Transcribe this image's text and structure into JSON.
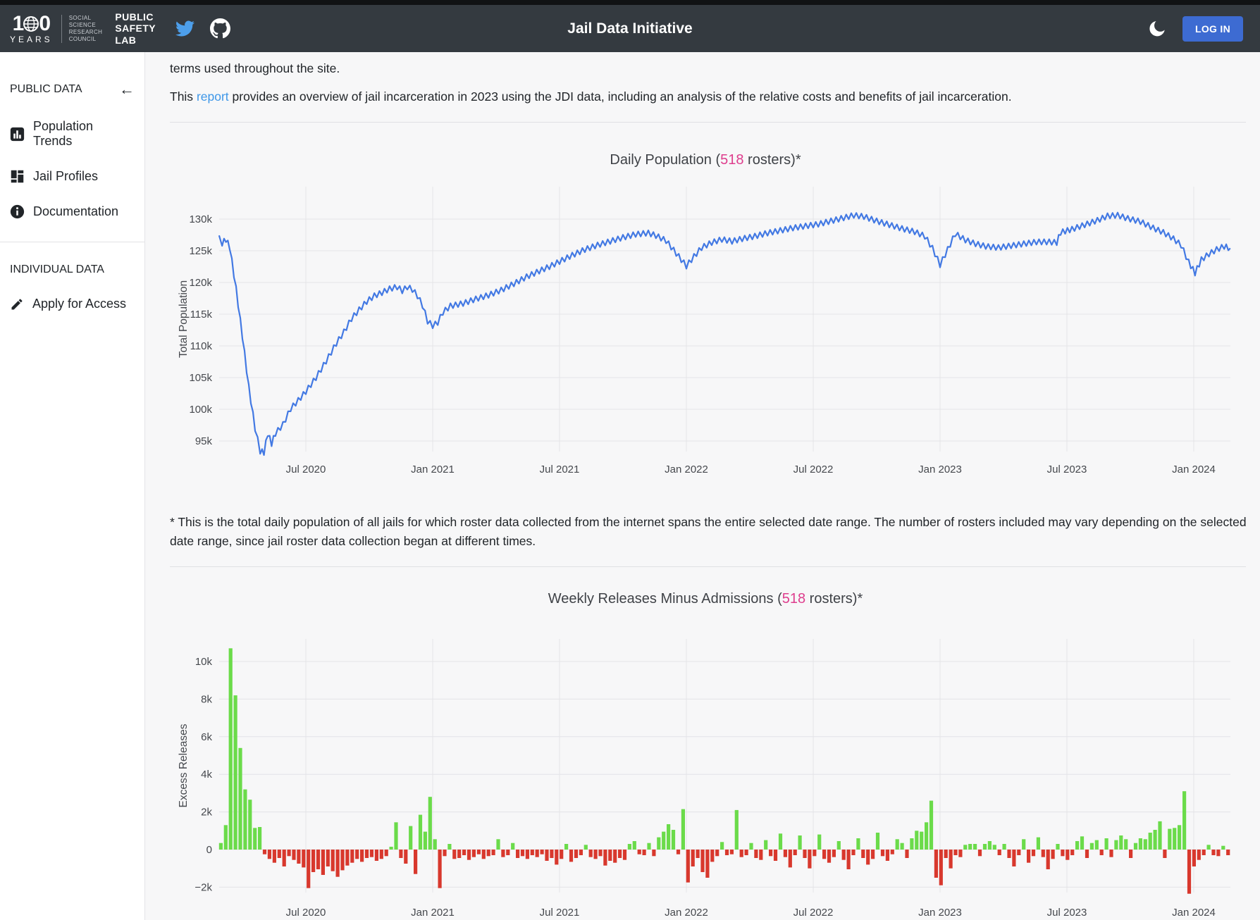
{
  "navbar": {
    "logo": {
      "one": "1",
      "zero": "0",
      "years": "YEARS"
    },
    "ssrc_lines": [
      "SOCIAL",
      "SCIENCE",
      "RESEARCH",
      "COUNCIL"
    ],
    "psl_lines": [
      "PUBLIC",
      "SAFETY",
      "LAB"
    ],
    "title": "Jail Data Initiative",
    "login_label": "LOG IN"
  },
  "sidebar": {
    "public_heading": "PUBLIC DATA",
    "back_arrow": "←",
    "items": [
      {
        "label": "Population Trends"
      },
      {
        "label": "Jail Profiles"
      },
      {
        "label": "Documentation"
      }
    ],
    "individual_heading": "INDIVIDUAL DATA",
    "apply_label": "Apply for Access"
  },
  "intro": {
    "line1": "terms used throughout the site.",
    "line2_pre": "This ",
    "line2_link": "report",
    "line2_post": " provides an overview of jail incarceration in 2023 using the JDI data, including an analysis of the relative costs and benefits of jail incarceration."
  },
  "footnote": "* This is the total daily population of all jails for which roster data collected from the internet spans the entire selected date range. The number of rosters included may vary depending on the selected date range, since jail roster data collection began at different times.",
  "chart_data": [
    {
      "type": "line",
      "title_pre": "Daily Population (",
      "title_count": "518",
      "title_post": " rosters)*",
      "ylabel": "Total Population",
      "units": "thousands",
      "line_color": "#4379e3",
      "xlim": [
        2020.158,
        2024.144
      ],
      "ylim": [
        92,
        132
      ],
      "yticks": [
        {
          "v": 130,
          "label": "130k"
        },
        {
          "v": 125,
          "label": "125k"
        },
        {
          "v": 120,
          "label": "120k"
        },
        {
          "v": 115,
          "label": "115k"
        },
        {
          "v": 110,
          "label": "110k"
        },
        {
          "v": 105,
          "label": "105k"
        },
        {
          "v": 100,
          "label": "100k"
        },
        {
          "v": 95,
          "label": "95k"
        }
      ],
      "xticks": [
        {
          "t": 2020.5,
          "label": "Jul 2020"
        },
        {
          "t": 2021.0,
          "label": "Jan 2021"
        },
        {
          "t": 2021.5,
          "label": "Jul 2021"
        },
        {
          "t": 2022.0,
          "label": "Jan 2022"
        },
        {
          "t": 2022.5,
          "label": "Jul 2022"
        },
        {
          "t": 2023.0,
          "label": "Jan 2023"
        },
        {
          "t": 2023.5,
          "label": "Jul 2023"
        },
        {
          "t": 2024.0,
          "label": "Jan 2024"
        }
      ],
      "weekly_oscillation_k": 0.42,
      "trend_points_k": [
        [
          2020.158,
          127.0
        ],
        [
          2020.17,
          126.2
        ],
        [
          2020.185,
          126.8
        ],
        [
          2020.2,
          125.6
        ],
        [
          2020.225,
          119.0
        ],
        [
          2020.25,
          111.5
        ],
        [
          2020.275,
          103.5
        ],
        [
          2020.3,
          97.0
        ],
        [
          2020.32,
          93.4
        ],
        [
          2020.335,
          93.2
        ],
        [
          2020.35,
          96.2
        ],
        [
          2020.365,
          94.6
        ],
        [
          2020.38,
          96.2
        ],
        [
          2020.41,
          97.6
        ],
        [
          2020.44,
          100.1
        ],
        [
          2020.47,
          101.4
        ],
        [
          2020.5,
          102.8
        ],
        [
          2020.54,
          105.0
        ],
        [
          2020.58,
          107.6
        ],
        [
          2020.62,
          110.4
        ],
        [
          2020.65,
          112.2
        ],
        [
          2020.68,
          114.3
        ],
        [
          2020.71,
          115.7
        ],
        [
          2020.74,
          117.0
        ],
        [
          2020.77,
          117.9
        ],
        [
          2020.8,
          118.4
        ],
        [
          2020.83,
          119.0
        ],
        [
          2020.86,
          119.3
        ],
        [
          2020.88,
          118.7
        ],
        [
          2020.9,
          119.3
        ],
        [
          2020.92,
          118.9
        ],
        [
          2020.94,
          117.9
        ],
        [
          2020.96,
          116.4
        ],
        [
          2020.98,
          113.9
        ],
        [
          2021.0,
          113.2
        ],
        [
          2021.02,
          113.7
        ],
        [
          2021.04,
          115.3
        ],
        [
          2021.07,
          116.3
        ],
        [
          2021.12,
          116.7
        ],
        [
          2021.17,
          117.4
        ],
        [
          2021.22,
          118.0
        ],
        [
          2021.27,
          118.8
        ],
        [
          2021.32,
          119.8
        ],
        [
          2021.37,
          120.9
        ],
        [
          2021.42,
          121.8
        ],
        [
          2021.46,
          122.5
        ],
        [
          2021.5,
          123.3
        ],
        [
          2021.55,
          124.3
        ],
        [
          2021.6,
          125.2
        ],
        [
          2021.65,
          125.9
        ],
        [
          2021.7,
          126.5
        ],
        [
          2021.75,
          127.1
        ],
        [
          2021.8,
          127.6
        ],
        [
          2021.85,
          127.8
        ],
        [
          2021.88,
          127.4
        ],
        [
          2021.92,
          126.6
        ],
        [
          2021.96,
          124.6
        ],
        [
          2022.0,
          122.6
        ],
        [
          2022.03,
          124.1
        ],
        [
          2022.06,
          125.5
        ],
        [
          2022.1,
          126.3
        ],
        [
          2022.14,
          126.8
        ],
        [
          2022.18,
          126.5
        ],
        [
          2022.22,
          126.9
        ],
        [
          2022.27,
          127.3
        ],
        [
          2022.32,
          127.8
        ],
        [
          2022.37,
          128.2
        ],
        [
          2022.42,
          128.6
        ],
        [
          2022.47,
          128.9
        ],
        [
          2022.52,
          129.2
        ],
        [
          2022.57,
          129.7
        ],
        [
          2022.62,
          130.2
        ],
        [
          2022.66,
          130.6
        ],
        [
          2022.7,
          130.4
        ],
        [
          2022.75,
          129.7
        ],
        [
          2022.8,
          129.1
        ],
        [
          2022.85,
          128.5
        ],
        [
          2022.9,
          128.0
        ],
        [
          2022.94,
          127.3
        ],
        [
          2022.97,
          125.4
        ],
        [
          2023.0,
          122.8
        ],
        [
          2023.03,
          125.2
        ],
        [
          2023.06,
          127.7
        ],
        [
          2023.1,
          126.7
        ],
        [
          2023.14,
          126.1
        ],
        [
          2023.18,
          125.7
        ],
        [
          2023.23,
          125.5
        ],
        [
          2023.28,
          125.8
        ],
        [
          2023.33,
          126.1
        ],
        [
          2023.38,
          126.4
        ],
        [
          2023.43,
          126.4
        ],
        [
          2023.46,
          126.3
        ],
        [
          2023.475,
          127.9
        ],
        [
          2023.52,
          128.4
        ],
        [
          2023.57,
          129.1
        ],
        [
          2023.62,
          129.8
        ],
        [
          2023.66,
          130.5
        ],
        [
          2023.7,
          130.6
        ],
        [
          2023.74,
          130.1
        ],
        [
          2023.79,
          129.6
        ],
        [
          2023.84,
          128.6
        ],
        [
          2023.88,
          127.9
        ],
        [
          2023.92,
          126.9
        ],
        [
          2023.95,
          125.9
        ],
        [
          2023.98,
          123.2
        ],
        [
          2024.005,
          121.5
        ],
        [
          2024.03,
          123.6
        ],
        [
          2024.06,
          124.5
        ],
        [
          2024.09,
          125.2
        ],
        [
          2024.12,
          125.7
        ],
        [
          2024.144,
          125.4
        ]
      ]
    },
    {
      "type": "bar",
      "title_pre": "Weekly Releases Minus Admissions (",
      "title_count": "518",
      "title_post": " rosters)*",
      "ylabel": "Excess Releases",
      "units": "thousands",
      "pos_color": "#6bdb4a",
      "neg_color": "#d8382d",
      "yticks": [
        {
          "v": 10,
          "label": "10k"
        },
        {
          "v": 8,
          "label": "8k"
        },
        {
          "v": 6,
          "label": "6k"
        },
        {
          "v": 4,
          "label": "4k"
        },
        {
          "v": 2,
          "label": "2k"
        },
        {
          "v": 0,
          "label": "0"
        },
        {
          "v": -2,
          "label": "−2k"
        }
      ],
      "xticks": [
        {
          "t": 2020.5,
          "label": "Jul 2020"
        },
        {
          "t": 2021.0,
          "label": "Jan 2021"
        },
        {
          "t": 2021.5,
          "label": "Jul 2021"
        },
        {
          "t": 2022.0,
          "label": "Jan 2022"
        },
        {
          "t": 2022.5,
          "label": "Jul 2022"
        },
        {
          "t": 2023.0,
          "label": "Jan 2023"
        },
        {
          "t": 2023.5,
          "label": "Jul 2023"
        },
        {
          "t": 2024.0,
          "label": "Jan 2024"
        }
      ],
      "start_t": 2020.165,
      "week_step": 0.01918,
      "values_k": [
        0.35,
        1.3,
        10.7,
        8.2,
        5.4,
        3.2,
        2.65,
        1.15,
        1.2,
        -0.25,
        -0.5,
        -0.7,
        -0.45,
        -0.9,
        -0.35,
        -0.55,
        -0.75,
        -0.95,
        -2.05,
        -1.2,
        -1.05,
        -1.35,
        -0.9,
        -1.15,
        -1.45,
        -1.1,
        -0.85,
        -0.7,
        -0.5,
        -0.65,
        -0.45,
        -0.4,
        -0.6,
        -0.5,
        -0.35,
        0.15,
        1.45,
        -0.45,
        -0.75,
        1.25,
        -1.3,
        1.85,
        0.95,
        2.8,
        0.55,
        -2.05,
        -0.35,
        0.3,
        -0.5,
        -0.45,
        -0.3,
        -0.55,
        -0.4,
        -0.25,
        -0.5,
        -0.35,
        -0.3,
        0.55,
        -0.4,
        -0.3,
        0.35,
        -0.45,
        -0.35,
        -0.5,
        -0.3,
        -0.4,
        -0.25,
        -0.6,
        -0.45,
        -0.8,
        -0.5,
        0.3,
        -0.65,
        -0.45,
        -0.3,
        0.25,
        -0.4,
        -0.5,
        -0.35,
        -0.85,
        -0.6,
        -0.7,
        -0.45,
        -0.55,
        0.3,
        0.45,
        -0.25,
        -0.3,
        0.35,
        -0.35,
        0.65,
        0.95,
        1.35,
        1.05,
        -0.25,
        2.15,
        -1.75,
        -0.9,
        -0.45,
        -1.2,
        -1.5,
        -0.65,
        -0.35,
        0.4,
        -0.3,
        -0.25,
        2.1,
        -0.4,
        -0.3,
        0.35,
        -0.45,
        -0.55,
        0.5,
        -0.35,
        -0.6,
        0.85,
        -0.4,
        -0.95,
        -0.3,
        0.75,
        -0.45,
        -1.0,
        -0.35,
        0.8,
        -0.5,
        -0.7,
        -0.4,
        0.45,
        -0.55,
        -1.05,
        -0.3,
        0.6,
        -0.45,
        -0.8,
        -0.5,
        0.9,
        -0.35,
        -0.6,
        -0.25,
        0.55,
        0.35,
        -0.45,
        0.6,
        1.0,
        0.95,
        1.45,
        2.6,
        -1.5,
        -1.9,
        -0.45,
        -1.0,
        -0.3,
        -0.4,
        0.25,
        0.3,
        0.3,
        -0.35,
        0.3,
        0.45,
        0.25,
        -0.3,
        0.3,
        -0.45,
        -0.9,
        -0.3,
        0.55,
        -0.7,
        -0.35,
        0.65,
        -0.4,
        -1.05,
        -0.5,
        0.3,
        -0.35,
        -0.55,
        -0.3,
        0.45,
        0.7,
        -0.45,
        0.35,
        0.5,
        -0.3,
        0.6,
        -0.4,
        0.5,
        0.75,
        0.55,
        -0.45,
        0.35,
        0.6,
        0.55,
        0.9,
        1.05,
        1.5,
        -0.45,
        1.1,
        1.15,
        1.3,
        3.1,
        -2.35,
        -0.9,
        -0.55,
        -0.3,
        0.25,
        -0.3,
        -0.35,
        0.2,
        -0.3
      ]
    }
  ]
}
